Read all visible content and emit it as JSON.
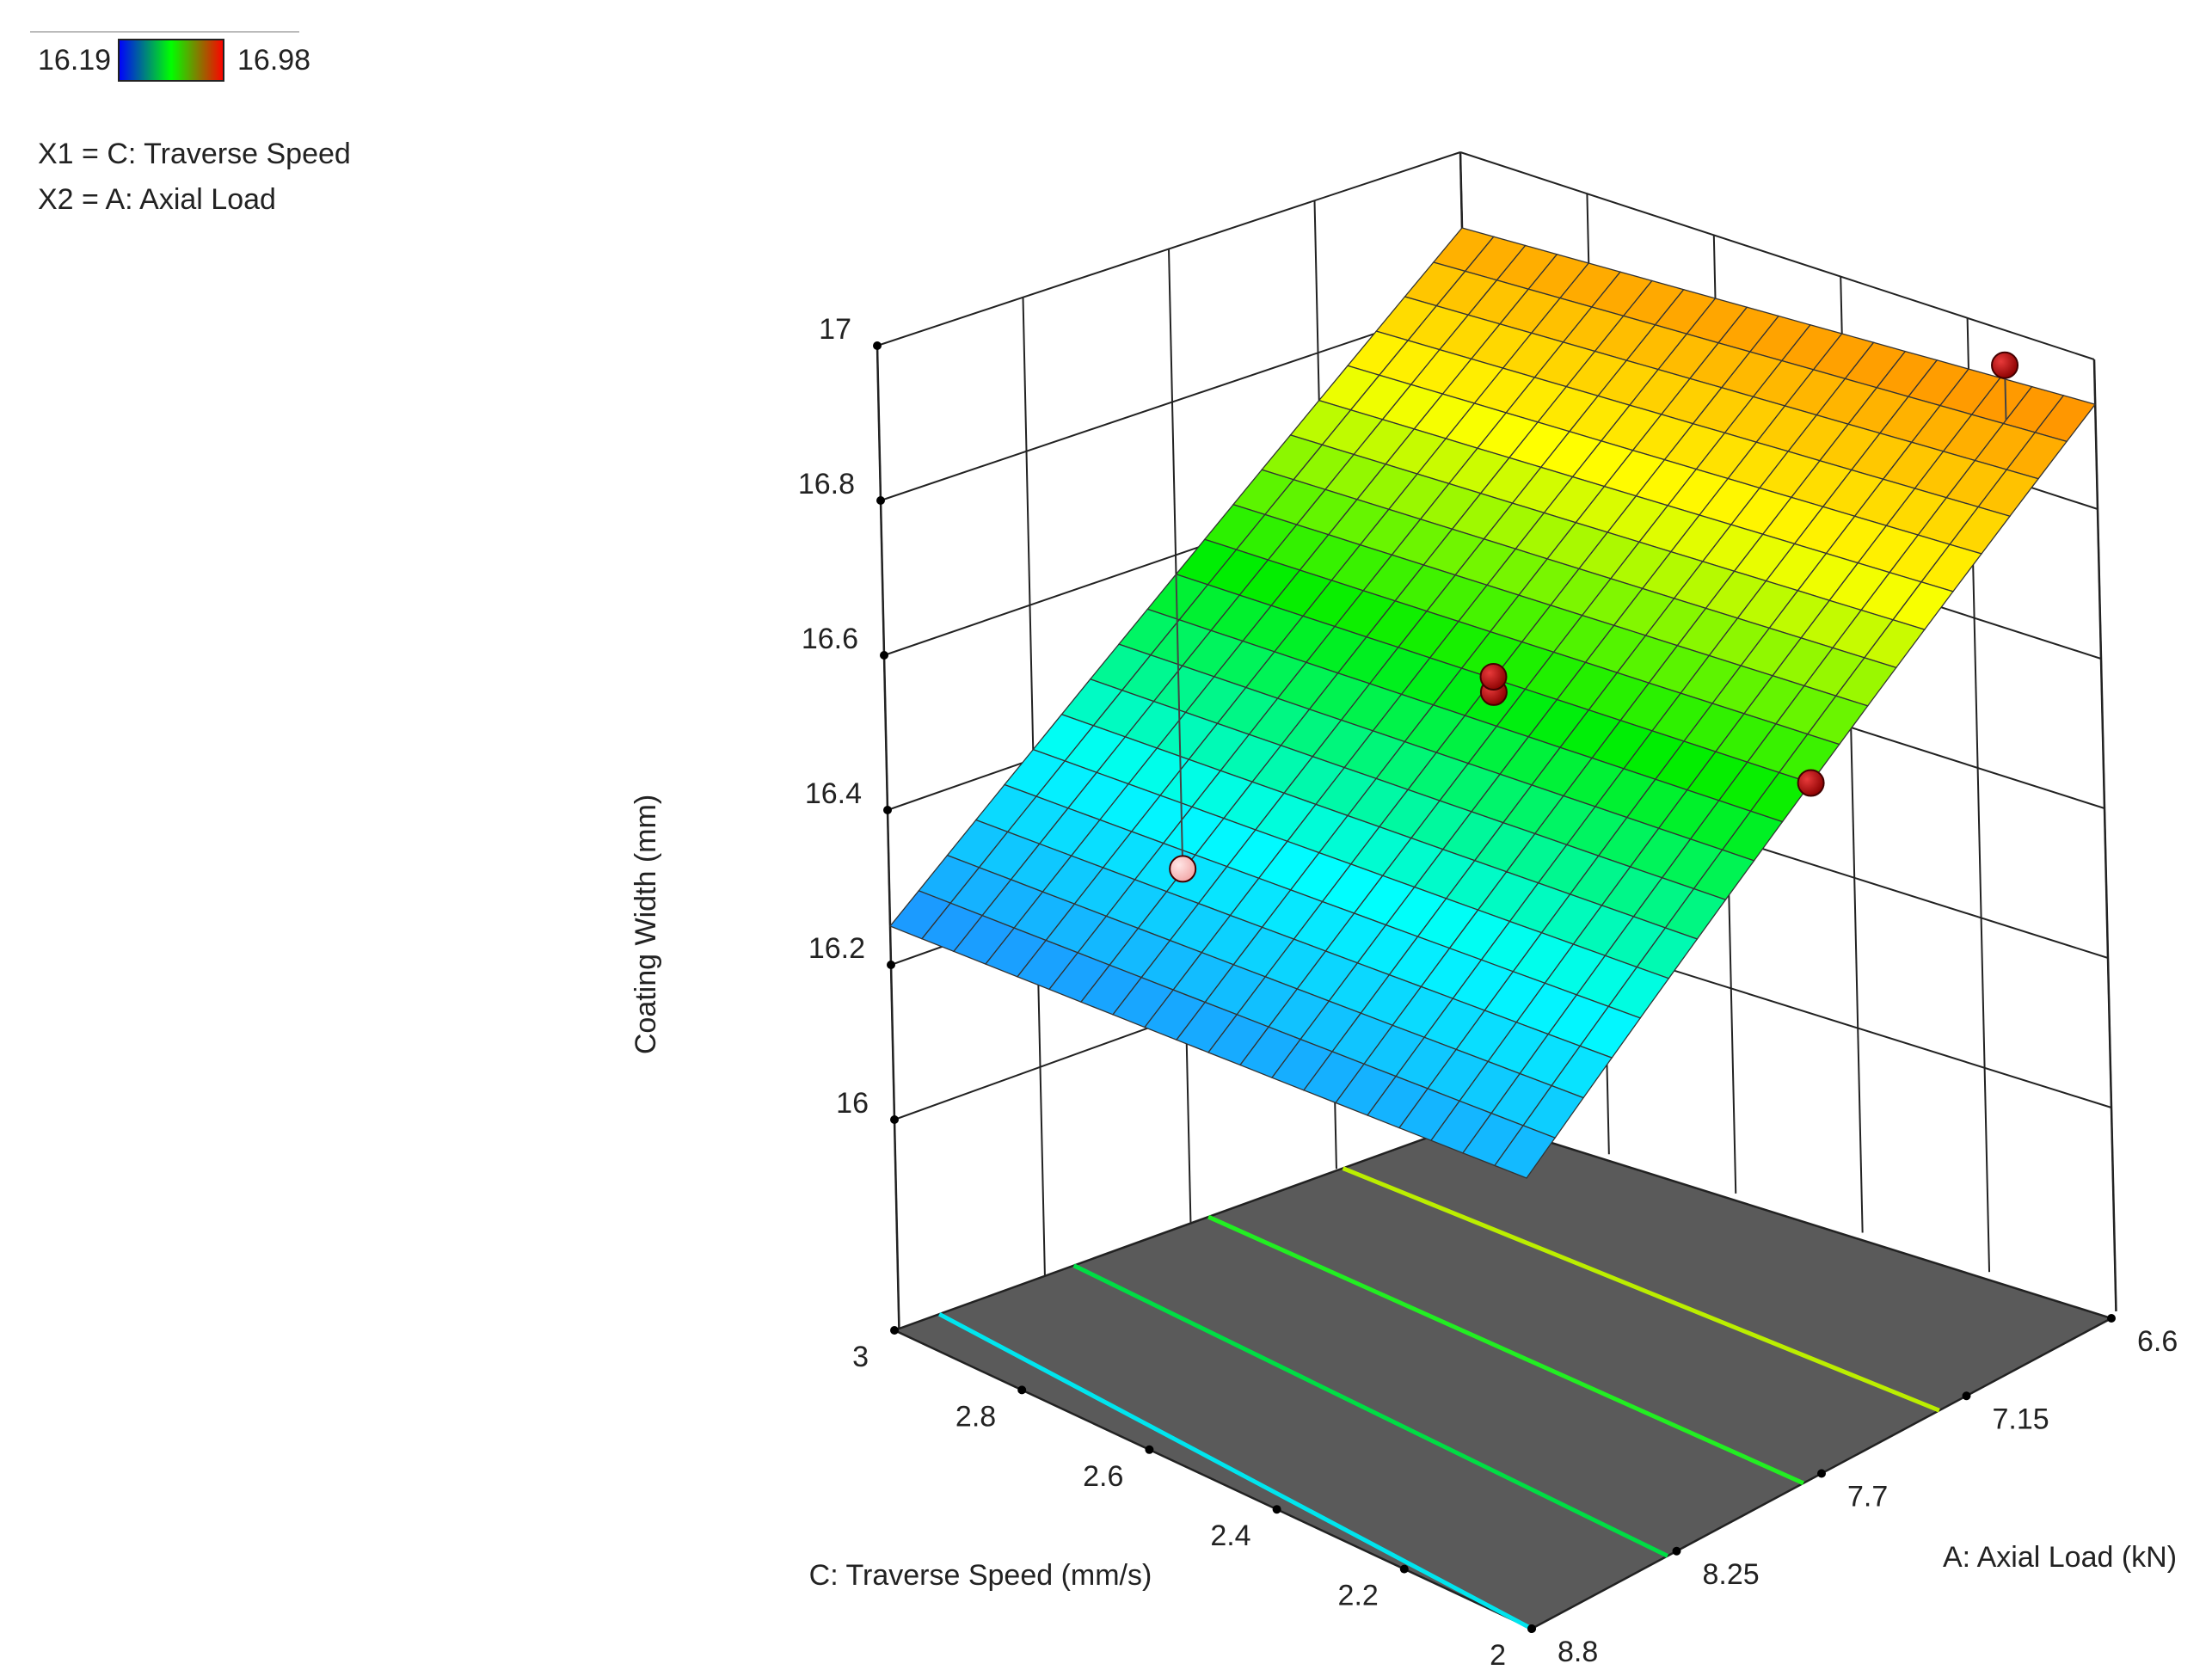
{
  "legend": {
    "min_label": "16.19",
    "max_label": "16.98",
    "gradient_colors": [
      "#0000ff",
      "#00ff00",
      "#ff0000"
    ],
    "factor_lines": [
      "X1 = C: Traverse Speed",
      "X2 = A: Axial Load"
    ]
  },
  "chart_data": {
    "type": "surface",
    "title": "",
    "zlabel": "Coating Width  (mm)",
    "xlabel": "C: Traverse Speed  (mm/s)",
    "ylabel": "A: Axial Load  (kN)",
    "x_range": [
      2,
      3
    ],
    "y_range": [
      6.6,
      8.8
    ],
    "z_range": [
      16,
      17
    ],
    "x_ticks": [
      "3",
      "2.8",
      "2.6",
      "2.4",
      "2.2",
      "2"
    ],
    "y_ticks": [
      "6.6",
      "7.15",
      "7.7",
      "8.25",
      "8.8"
    ],
    "z_ticks": [
      "16",
      "16.2",
      "16.4",
      "16.6",
      "16.8",
      "17"
    ],
    "surface": {
      "corners": [
        {
          "x": 3,
          "y": 6.6,
          "z": 16.9
        },
        {
          "x": 2,
          "y": 6.6,
          "z": 16.94
        },
        {
          "x": 3,
          "y": 8.8,
          "z": 16.25
        },
        {
          "x": 2,
          "y": 8.8,
          "z": 16.3
        }
      ],
      "grid_divisions": 20
    },
    "design_points": [
      {
        "x": 2.1,
        "y": 6.7,
        "z": 16.98,
        "position": "above"
      },
      {
        "x": 2.5,
        "y": 7.7,
        "z": 16.58,
        "position": "above"
      },
      {
        "x": 2.5,
        "y": 7.7,
        "z": 16.6,
        "position": "above"
      },
      {
        "x": 2.0,
        "y": 7.7,
        "z": 16.62,
        "position": "above"
      },
      {
        "x": 3.0,
        "y": 7.7,
        "z": 16.19,
        "position": "below"
      }
    ],
    "contour_levels": [
      16.3,
      16.45,
      16.6,
      16.75,
      16.9
    ],
    "floor_color": "#5a5a5a",
    "color_scale": [
      "#1e90ff",
      "#00ffff",
      "#00ee00",
      "#ffff00",
      "#ff8c00"
    ]
  }
}
